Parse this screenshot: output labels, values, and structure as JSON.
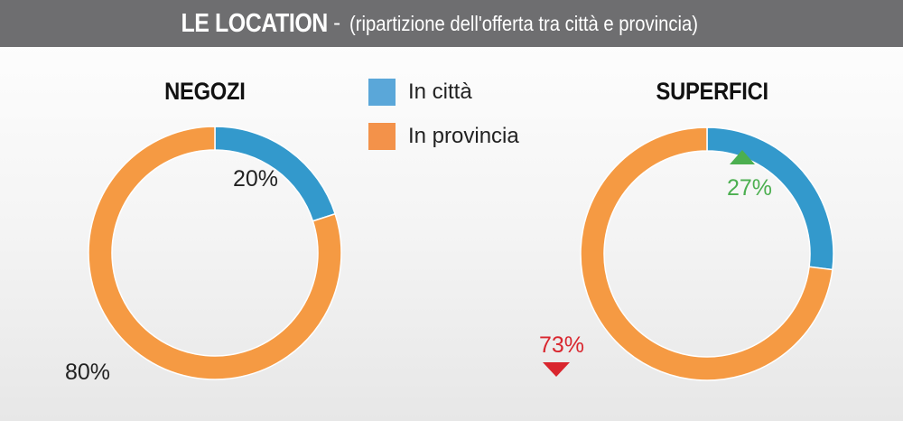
{
  "header": {
    "title": "LE LOCATION",
    "separator": "-",
    "subtitle": "(ripartizione dell'offerta tra città e provincia)"
  },
  "legend": [
    {
      "label": "In città",
      "color": "#5aa7d9"
    },
    {
      "label": "In provincia",
      "color": "#f3924a"
    }
  ],
  "chart_data": [
    {
      "type": "pie",
      "title": "NEGOZI",
      "categories": [
        "In città",
        "In provincia"
      ],
      "values": [
        20,
        80
      ],
      "labels": [
        "20%",
        "80%"
      ],
      "colors": [
        "#3399cc",
        "#f59a43"
      ],
      "label_colors": [
        "#222222",
        "#222222"
      ]
    },
    {
      "type": "pie",
      "title": "SUPERFICI",
      "categories": [
        "In città",
        "In provincia"
      ],
      "values": [
        27,
        73
      ],
      "labels": [
        "27%",
        "73%"
      ],
      "colors": [
        "#3399cc",
        "#f59a43"
      ],
      "label_colors": [
        "#4caf50",
        "#d9262e"
      ],
      "trend": [
        "up",
        "down"
      ]
    }
  ]
}
